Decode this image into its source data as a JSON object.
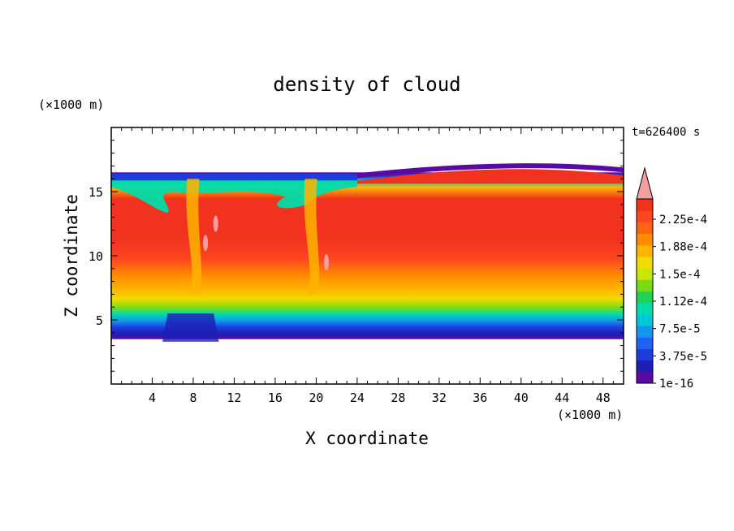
{
  "chart_data": {
    "type": "heatmap",
    "title": "density of cloud",
    "xlabel": "X coordinate",
    "ylabel": "Z coordinate",
    "x_unit": "(×1000 m)",
    "y_unit": "(×1000 m)",
    "time_label": "t=626400 s",
    "xlim": [
      0,
      50
    ],
    "ylim": [
      0,
      20
    ],
    "x_ticks": [
      4,
      8,
      12,
      16,
      20,
      24,
      28,
      32,
      36,
      40,
      44,
      48
    ],
    "y_ticks": [
      5,
      10,
      15
    ],
    "colorbar": {
      "labels": [
        "2.25e-4",
        "1.88e-4",
        "1.5e-4",
        "1.12e-4",
        "7.5e-5",
        "3.75e-5",
        "1e-16"
      ],
      "colors": [
        "#5a0aa0",
        "#1e1eb4",
        "#1e3cdc",
        "#1e64f0",
        "#1496f0",
        "#00c8dc",
        "#00dcaa",
        "#1ed25a",
        "#78dc14",
        "#c8e600",
        "#f0dc00",
        "#ffb400",
        "#ff8c00",
        "#ff6414",
        "#ff461e",
        "#f0321e"
      ],
      "overflow_color": "#f5a0a0"
    },
    "cloud_base_km": 3.5,
    "cloud_top_km": 16.5,
    "max_region_km": [
      8.5,
      13.5
    ],
    "updrafts_x_km": [
      8,
      19.5
    ]
  }
}
